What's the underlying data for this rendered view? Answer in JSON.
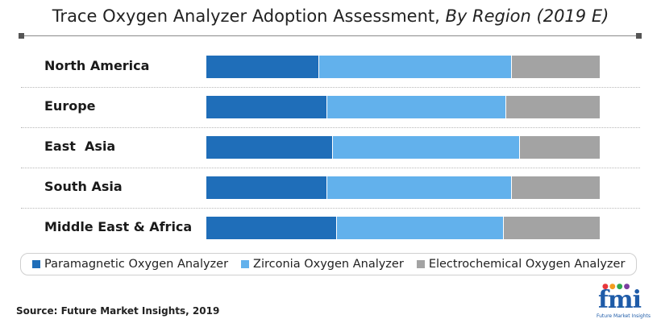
{
  "title": "Trace Oxygen Analyzer Adoption Assessment,",
  "subtitle": "By Region (2019 E)",
  "source": "Source: Future Market Insights, 2019",
  "logo": {
    "mark": "fmi",
    "tagline": "Future Market Insights"
  },
  "colors": {
    "paramagnetic": "#1f6eb9",
    "zirconia": "#62b1ec",
    "electrochemical": "#a3a3a3"
  },
  "chart_data": {
    "type": "bar",
    "orientation": "horizontal",
    "stacked": true,
    "normalized_to": 100,
    "title": "Trace Oxygen Analyzer Adoption Assessment, By Region (2019 E)",
    "categories": [
      "North America",
      "Europe",
      "East  Asia",
      "South Asia",
      "Middle East & Africa"
    ],
    "series": [
      {
        "name": "Paramagnetic Oxygen Analyzer",
        "values": [
          28.5,
          30.5,
          32,
          30.5,
          33
        ]
      },
      {
        "name": "Zirconia Oxygen Analyzer",
        "values": [
          49,
          45.5,
          47.5,
          47,
          42.5
        ]
      },
      {
        "name": "Electrochemical Oxygen Analyzer",
        "values": [
          22.5,
          24,
          20.5,
          22.5,
          24.5
        ]
      }
    ],
    "legend_position": "bottom",
    "grid": false
  }
}
